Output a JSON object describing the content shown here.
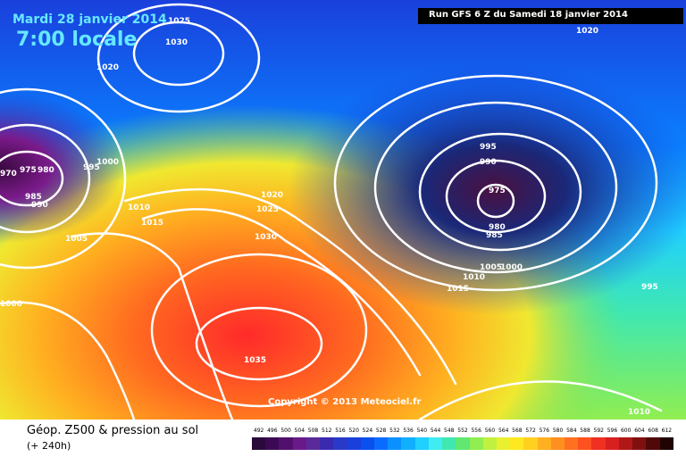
{
  "header": {
    "date": "Mardi 28 janvier 2014",
    "time": "7:00 locale",
    "run": "Run GFS 6 Z du Samedi 18 janvier 2014"
  },
  "copyright": "Copyright © 2013 Meteociel.fr",
  "footer": {
    "title": "Géop. Z500 & pression au sol",
    "forecast_hour": "(+ 240h)"
  },
  "legend": {
    "ticks": [
      "492",
      "496",
      "500",
      "504",
      "508",
      "512",
      "516",
      "520",
      "524",
      "528",
      "532",
      "536",
      "540",
      "544",
      "548",
      "552",
      "556",
      "560",
      "564",
      "568",
      "572",
      "576",
      "580",
      "584",
      "588",
      "592",
      "596",
      "600",
      "604",
      "608",
      "612"
    ],
    "colors": [
      "#2a0a3a",
      "#3c0a55",
      "#52106e",
      "#6a1a88",
      "#5a2a9a",
      "#3a2ab0",
      "#2a3ac8",
      "#1a40dc",
      "#0a50ef",
      "#0a6cff",
      "#0a90ff",
      "#10b0ff",
      "#20d0ff",
      "#40ecf0",
      "#40e8b0",
      "#60e870",
      "#90ee50",
      "#c0f040",
      "#e8f030",
      "#ffe820",
      "#ffd020",
      "#ffb020",
      "#ff9020",
      "#ff7020",
      "#ff5020",
      "#f03020",
      "#d82020",
      "#b01818",
      "#801010",
      "#500808",
      "#200404"
    ]
  },
  "isobar_labels": [
    "1025",
    "1030",
    "1020",
    "970",
    "975",
    "980",
    "995",
    "1000",
    "985",
    "990",
    "1010",
    "1015",
    "1005",
    "1000",
    "1020",
    "1025",
    "1030",
    "995",
    "990",
    "975",
    "980",
    "985",
    "1010",
    "1005",
    "1000",
    "1015",
    "995",
    "1035",
    "1020",
    "1010"
  ]
}
